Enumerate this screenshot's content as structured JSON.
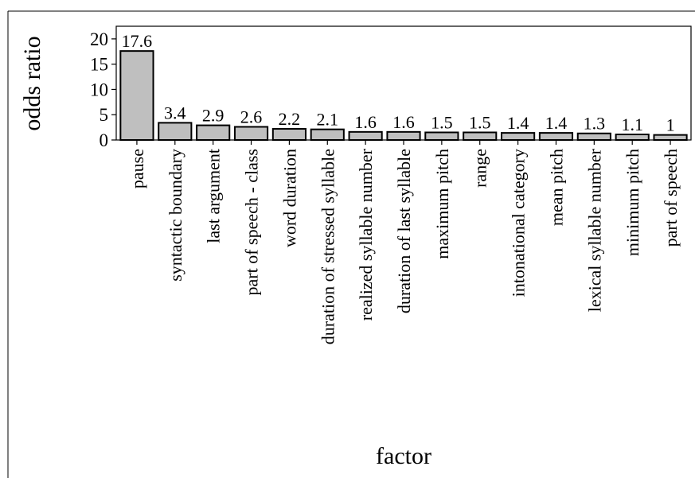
{
  "chart_data": {
    "type": "bar",
    "xlabel": "factor",
    "ylabel": "odds ratio",
    "categories": [
      "pause",
      "syntactic boundary",
      "last argument",
      "part of speech - class",
      "word duration",
      "duration of stressed syllable",
      "realized syllable number",
      "duration of last syllable",
      "maximum pitch",
      "range",
      "intonational category",
      "mean pitch",
      "lexical syllable number",
      "minimum pitch",
      "part of speech"
    ],
    "values": [
      17.6,
      3.4,
      2.9,
      2.6,
      2.2,
      2.1,
      1.6,
      1.6,
      1.5,
      1.5,
      1.4,
      1.4,
      1.3,
      1.1,
      1
    ],
    "value_labels": [
      "17.6",
      "3.4",
      "2.9",
      "2.6",
      "2.2",
      "2.1",
      "1.6",
      "1.6",
      "1.5",
      "1.5",
      "1.4",
      "1.4",
      "1.3",
      "1.1",
      "1"
    ],
    "yticks": [
      "0",
      "5",
      "10",
      "15",
      "20"
    ],
    "ylim": [
      0,
      22.5
    ],
    "bar_color": "#bfbfbf",
    "bar_edge_color": "#000000",
    "grid": false,
    "legend": "none"
  }
}
